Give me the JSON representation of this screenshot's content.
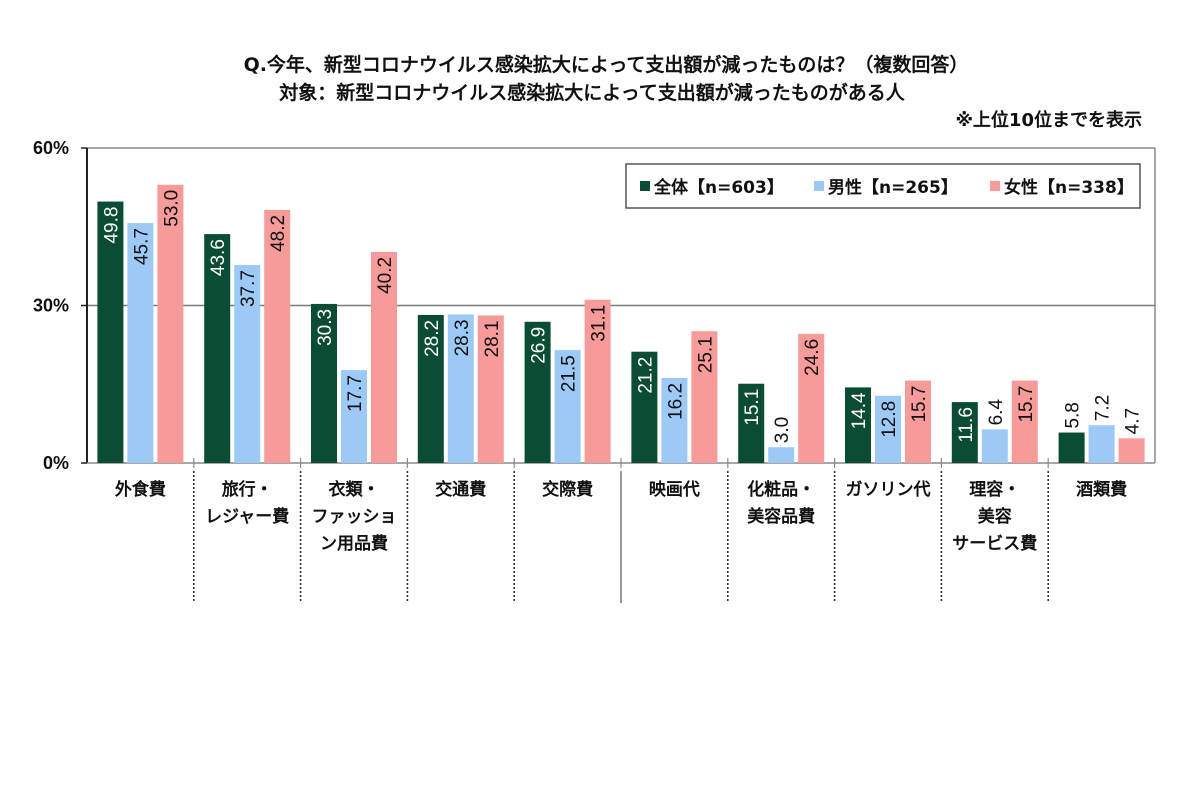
{
  "chart_data": {
    "type": "bar",
    "title": "Q.今年、新型コロナウイルス感染拡大によって支出額が減ったものは？（複数回答）",
    "subtitle": "対象：新型コロナウイルス感染拡大によって支出額が減ったものがある人",
    "note": "※上位10位までを表示",
    "xlabel": "",
    "ylabel": "",
    "ylim": [
      0,
      60
    ],
    "yticks": [
      {
        "value": 0,
        "label": "0%"
      },
      {
        "value": 30,
        "label": "30%"
      },
      {
        "value": 60,
        "label": "60%"
      }
    ],
    "grid": true,
    "legend_position": "top-right",
    "categories": [
      [
        "外食費"
      ],
      [
        "旅行・",
        "レジャー費"
      ],
      [
        "衣類・",
        "ファッショ",
        "ン用品費"
      ],
      [
        "交通費"
      ],
      [
        "交際費"
      ],
      [
        "映画代"
      ],
      [
        "化粧品・",
        "美容品費"
      ],
      [
        "ガソリン代"
      ],
      [
        "理容・",
        "美容",
        "サービス費"
      ],
      [
        "酒類費"
      ]
    ],
    "series": [
      {
        "name": "全体【n=603】",
        "color": "#0b4d32",
        "label_color": "#ffffff",
        "values": [
          49.8,
          43.6,
          30.3,
          28.2,
          26.9,
          21.2,
          15.1,
          14.4,
          11.6,
          5.8
        ],
        "labels": [
          "49.8",
          "43.6",
          "30.3",
          "28.2",
          "26.9",
          "21.2",
          "15.1",
          "14.4",
          "11.6",
          "5.8"
        ]
      },
      {
        "name": "男性【n=265】",
        "color": "#9cc9f5",
        "label_color": "#111111",
        "values": [
          45.7,
          37.7,
          17.7,
          28.3,
          21.5,
          16.2,
          3.0,
          12.8,
          6.4,
          7.2
        ],
        "labels": [
          "45.7",
          "37.7",
          "17.7",
          "28.3",
          "21.5",
          "16.2",
          "3.0",
          "12.8",
          "6.4",
          "7.2"
        ]
      },
      {
        "name": "女性【n=338】",
        "color": "#f79a9a",
        "label_color": "#111111",
        "values": [
          53.0,
          48.2,
          40.2,
          28.1,
          31.1,
          25.1,
          24.6,
          15.7,
          15.7,
          4.7
        ],
        "labels": [
          "53.0",
          "48.2",
          "40.2",
          "28.1",
          "31.1",
          "25.1",
          "24.6",
          "15.7",
          "15.7",
          "4.7"
        ]
      }
    ]
  }
}
